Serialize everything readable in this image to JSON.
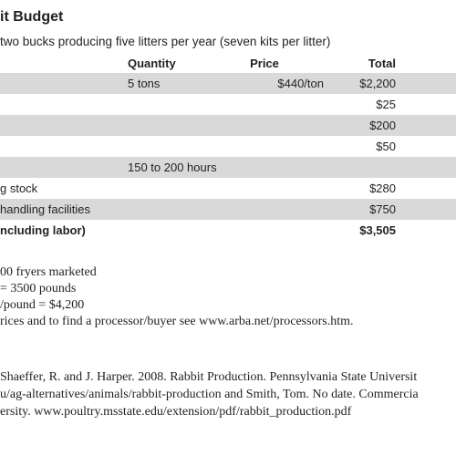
{
  "title": "it Budget",
  "subtitle": "two bucks producing five litters per year (seven kits per litter)",
  "table": {
    "headers": {
      "quantity": "Quantity",
      "price": "Price",
      "total": "Total"
    },
    "rows": [
      {
        "item": "",
        "quantity": "5 tons",
        "price": "$440/ton",
        "total": "$2,200"
      },
      {
        "item": "",
        "quantity": "",
        "price": "",
        "total": "$25"
      },
      {
        "item": "",
        "quantity": "",
        "price": "",
        "total": "$200"
      },
      {
        "item": "",
        "quantity": "",
        "price": "",
        "total": "$50"
      },
      {
        "item": "",
        "quantity": "150 to 200 hours",
        "price": "",
        "total": ""
      },
      {
        "item": "g stock",
        "quantity": "",
        "price": "",
        "total": "$280"
      },
      {
        "item": "handling facilities",
        "quantity": "",
        "price": "",
        "total": "$750"
      },
      {
        "item": "ncluding labor)",
        "quantity": "",
        "price": "",
        "total": "$3,505"
      }
    ]
  },
  "notes": [
    "00 fryers marketed",
    "= 3500 pounds",
    "/pound = $4,200",
    "rices and to find a processor/buyer see www.arba.net/processors.htm."
  ],
  "references": [
    "Shaeffer, R. and J. Harper. 2008. Rabbit Production. Pennsylvania State Universit",
    "u/ag-alternatives/animals/rabbit-production and Smith, Tom. No date. Commercia",
    "ersity. www.poultry.msstate.edu/extension/pdf/rabbit_production.pdf"
  ]
}
